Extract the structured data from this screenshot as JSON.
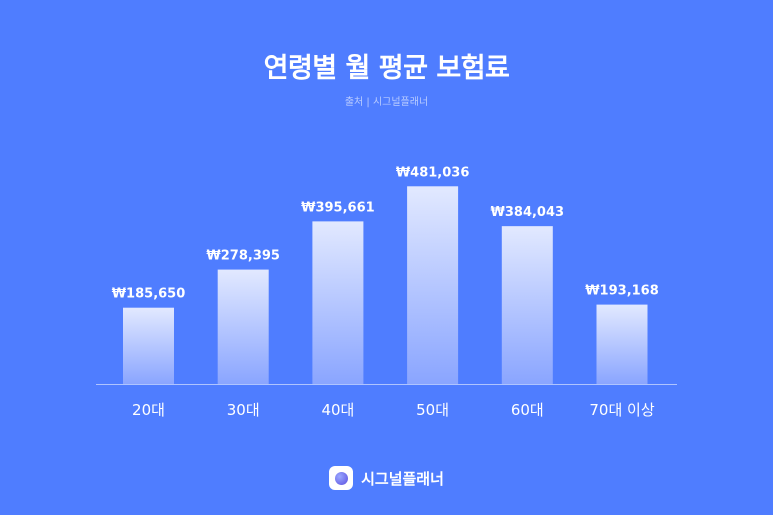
{
  "header": {
    "title": "연령별 월 평균 보험료",
    "source": "출처 | 시그널플래너"
  },
  "footer": {
    "brand_name": "시그널플래너",
    "brand_icon": "signalplanner-logo-icon"
  },
  "colors": {
    "background": "#4f7dff",
    "bar_top": "#e2e9ff",
    "bar_bottom": "#8aa5ff",
    "text": "#ffffff"
  },
  "chart_data": {
    "type": "bar",
    "title": "연령별 월 평균 보험료",
    "categories": [
      "20대",
      "30대",
      "40대",
      "50대",
      "60대",
      "70대 이상"
    ],
    "values": [
      185650,
      278395,
      395661,
      481036,
      384043,
      193168
    ],
    "data_labels": [
      "₩185,650",
      "₩278,395",
      "₩395,661",
      "₩481,036",
      "₩384,043",
      "₩193,168"
    ],
    "xlabel": "",
    "ylabel": "",
    "ylim": [
      0,
      500000
    ],
    "grid": false
  }
}
